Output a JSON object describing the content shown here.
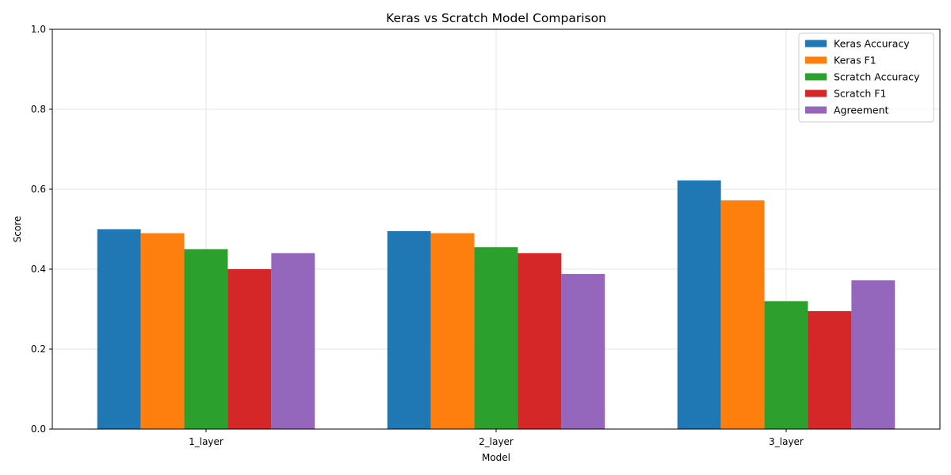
{
  "chart_data": {
    "type": "bar",
    "title": "Keras vs Scratch Model Comparison",
    "xlabel": "Model",
    "ylabel": "Score",
    "categories": [
      "1_layer",
      "2_layer",
      "3_layer"
    ],
    "ylim": [
      0,
      1.0
    ],
    "yticks": [
      "0.0",
      "0.2",
      "0.4",
      "0.6",
      "0.8",
      "1.0"
    ],
    "grid": true,
    "legend_position": "top-right",
    "series": [
      {
        "name": "Keras Accuracy",
        "color": "#1f77b4",
        "values": [
          0.5,
          0.495,
          0.622
        ]
      },
      {
        "name": "Keras F1",
        "color": "#ff7f0e",
        "values": [
          0.49,
          0.49,
          0.572
        ]
      },
      {
        "name": "Scratch Accuracy",
        "color": "#2ca02c",
        "values": [
          0.45,
          0.455,
          0.32
        ]
      },
      {
        "name": "Scratch F1",
        "color": "#d62728",
        "values": [
          0.4,
          0.44,
          0.295
        ]
      },
      {
        "name": "Agreement",
        "color": "#9467bd",
        "values": [
          0.44,
          0.388,
          0.372
        ]
      }
    ]
  }
}
